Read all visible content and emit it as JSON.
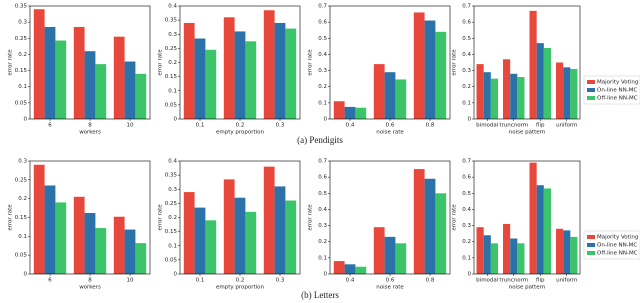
{
  "captions": [
    "(a)  Pendigits",
    "(b)  Letters"
  ],
  "chart_data": [
    {
      "type": "bar",
      "ylabel": "error rate",
      "xlabel": "workers",
      "categories": [
        "6",
        "8",
        "10"
      ],
      "ylim": [
        0,
        0.35
      ],
      "yticks": [
        0,
        0.05,
        0.1,
        0.15,
        0.2,
        0.25,
        0.3,
        0.35
      ],
      "series": [
        {
          "color": "#e8483c",
          "values": [
            0.34,
            0.285,
            0.255
          ]
        },
        {
          "color": "#2a72a8",
          "values": [
            0.285,
            0.21,
            0.178
          ]
        },
        {
          "color": "#3cc46a",
          "values": [
            0.243,
            0.17,
            0.14
          ]
        }
      ]
    },
    {
      "type": "bar",
      "ylabel": "error rate",
      "xlabel": "empty proportion",
      "categories": [
        "0.1",
        "0.2",
        "0.3"
      ],
      "ylim": [
        0,
        0.4
      ],
      "yticks": [
        0,
        0.05,
        0.1,
        0.15,
        0.2,
        0.25,
        0.3,
        0.35,
        0.4
      ],
      "series": [
        {
          "color": "#e8483c",
          "values": [
            0.34,
            0.36,
            0.385
          ]
        },
        {
          "color": "#2a72a8",
          "values": [
            0.285,
            0.31,
            0.34
          ]
        },
        {
          "color": "#3cc46a",
          "values": [
            0.245,
            0.275,
            0.32
          ]
        }
      ]
    },
    {
      "type": "bar",
      "ylabel": "error rate",
      "xlabel": "noise rate",
      "categories": [
        "0.4",
        "0.6",
        "0.8"
      ],
      "ylim": [
        0,
        0.7
      ],
      "yticks": [
        0,
        0.1,
        0.2,
        0.3,
        0.4,
        0.5,
        0.6,
        0.7
      ],
      "series": [
        {
          "color": "#e8483c",
          "values": [
            0.11,
            0.34,
            0.66
          ]
        },
        {
          "color": "#2a72a8",
          "values": [
            0.075,
            0.29,
            0.61
          ]
        },
        {
          "color": "#3cc46a",
          "values": [
            0.07,
            0.245,
            0.54
          ]
        }
      ]
    },
    {
      "type": "bar",
      "ylabel": "error rate",
      "xlabel": "noise pattern",
      "categories": [
        "bimodal",
        "truncnorm",
        "flip",
        "uniform"
      ],
      "ylim": [
        0,
        0.7
      ],
      "yticks": [
        0,
        0.1,
        0.2,
        0.3,
        0.4,
        0.5,
        0.6,
        0.7
      ],
      "legend": "right",
      "series": [
        {
          "name": "Majority Voting",
          "color": "#e8483c",
          "values": [
            0.34,
            0.37,
            0.67,
            0.35
          ]
        },
        {
          "name": "On-line NN-MC",
          "color": "#2a72a8",
          "values": [
            0.29,
            0.28,
            0.47,
            0.32
          ]
        },
        {
          "name": "Off-line NN-MC",
          "color": "#3cc46a",
          "values": [
            0.25,
            0.26,
            0.44,
            0.31
          ]
        }
      ]
    },
    {
      "type": "bar",
      "ylabel": "error rate",
      "xlabel": "workers",
      "categories": [
        "6",
        "8",
        "10"
      ],
      "ylim": [
        0,
        0.3
      ],
      "yticks": [
        0,
        0.05,
        0.1,
        0.15,
        0.2,
        0.25,
        0.3
      ],
      "series": [
        {
          "color": "#e8483c",
          "values": [
            0.29,
            0.205,
            0.152
          ]
        },
        {
          "color": "#2a72a8",
          "values": [
            0.235,
            0.162,
            0.118
          ]
        },
        {
          "color": "#3cc46a",
          "values": [
            0.19,
            0.122,
            0.082
          ]
        }
      ]
    },
    {
      "type": "bar",
      "ylabel": "error rate",
      "xlabel": "empty proportion",
      "categories": [
        "0.1",
        "0.2",
        "0.3"
      ],
      "ylim": [
        0,
        0.4
      ],
      "yticks": [
        0,
        0.05,
        0.1,
        0.15,
        0.2,
        0.25,
        0.3,
        0.35,
        0.4
      ],
      "series": [
        {
          "color": "#e8483c",
          "values": [
            0.29,
            0.335,
            0.38
          ]
        },
        {
          "color": "#2a72a8",
          "values": [
            0.235,
            0.27,
            0.31
          ]
        },
        {
          "color": "#3cc46a",
          "values": [
            0.19,
            0.22,
            0.26
          ]
        }
      ]
    },
    {
      "type": "bar",
      "ylabel": "error rate",
      "xlabel": "noise rate",
      "categories": [
        "0.4",
        "0.6",
        "0.8"
      ],
      "ylim": [
        0,
        0.7
      ],
      "yticks": [
        0,
        0.1,
        0.2,
        0.3,
        0.4,
        0.5,
        0.6,
        0.7
      ],
      "series": [
        {
          "color": "#e8483c",
          "values": [
            0.08,
            0.29,
            0.65
          ]
        },
        {
          "color": "#2a72a8",
          "values": [
            0.06,
            0.23,
            0.59
          ]
        },
        {
          "color": "#3cc46a",
          "values": [
            0.045,
            0.19,
            0.5
          ]
        }
      ]
    },
    {
      "type": "bar",
      "ylabel": "error rate",
      "xlabel": "noise pattern",
      "categories": [
        "bimodal",
        "truncnorm",
        "flip",
        "uniform"
      ],
      "ylim": [
        0,
        0.7
      ],
      "yticks": [
        0,
        0.1,
        0.2,
        0.3,
        0.4,
        0.5,
        0.6,
        0.7
      ],
      "legend": "right",
      "series": [
        {
          "name": "Majority Voting",
          "color": "#e8483c",
          "values": [
            0.29,
            0.31,
            0.69,
            0.28
          ]
        },
        {
          "name": "On-line NN-MC",
          "color": "#2a72a8",
          "values": [
            0.24,
            0.22,
            0.55,
            0.27
          ]
        },
        {
          "name": "Off-line NN-MC",
          "color": "#3cc46a",
          "values": [
            0.19,
            0.19,
            0.53,
            0.23
          ]
        }
      ]
    }
  ]
}
